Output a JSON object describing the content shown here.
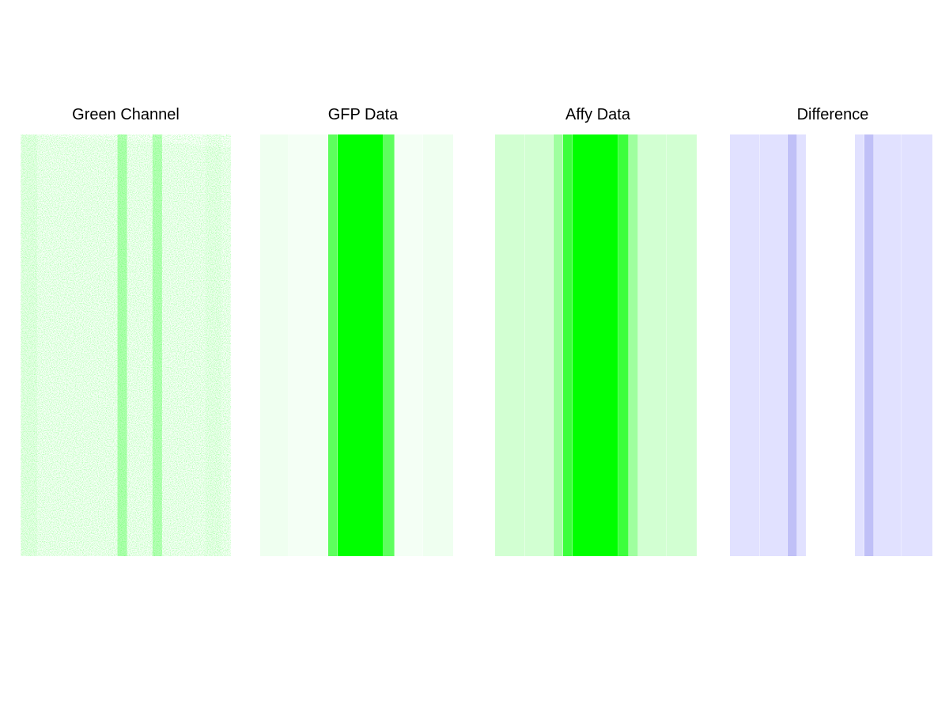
{
  "panels": {
    "green_channel": {
      "title": "Green Channel",
      "color": "#00ff00"
    },
    "gfp": {
      "title": "GFP Data"
    },
    "affy": {
      "title": "Affy Data"
    },
    "difference": {
      "title": "Difference"
    }
  },
  "chart_data": [
    {
      "type": "heatmap",
      "title": "Green Channel",
      "description_color": "#00ff00",
      "columns": [
        {
          "x": 0.5,
          "intensity": 0.08
        },
        {
          "x": 5.8,
          "intensity": 0.5
        },
        {
          "x": 7.8,
          "intensity": 0.45
        },
        {
          "x": 11.0,
          "intensity": 0.05
        }
      ]
    },
    {
      "type": "heatmap",
      "title": "GFP Data",
      "columns": [
        {
          "band": 1,
          "width": 36,
          "color": "#effff0"
        },
        {
          "band": 2,
          "width": 50,
          "color": "#f4fff5"
        },
        {
          "band": 3,
          "width": 12,
          "color": "#5dff5d"
        },
        {
          "band": 4,
          "width": 58,
          "color": "#00ff00"
        },
        {
          "band": 5,
          "width": 14,
          "color": "#5dff5d"
        },
        {
          "band": 6,
          "width": 36,
          "color": "#f4fff5"
        },
        {
          "band": 7,
          "width": 38,
          "color": "#effff0"
        }
      ]
    },
    {
      "type": "heatmap",
      "title": "Affy Data",
      "columns": [
        {
          "band": 1,
          "width": 38,
          "color": "#d2ffd2"
        },
        {
          "band": 2,
          "width": 36,
          "color": "#d2ffd2"
        },
        {
          "band": 3,
          "width": 12,
          "color": "#9fff9f"
        },
        {
          "band": 4,
          "width": 12,
          "color": "#3cff3c"
        },
        {
          "band": 5,
          "width": 58,
          "color": "#00ff00"
        },
        {
          "band": 6,
          "width": 13,
          "color": "#3cff3c"
        },
        {
          "band": 7,
          "width": 12,
          "color": "#9fff9f"
        },
        {
          "band": 8,
          "width": 36,
          "color": "#d2ffd2"
        },
        {
          "band": 9,
          "width": 38,
          "color": "#d2ffd2"
        }
      ]
    },
    {
      "type": "heatmap",
      "title": "Difference",
      "columns": [
        {
          "band": 1,
          "width": 38,
          "color": "#e1e1ff"
        },
        {
          "band": 2,
          "width": 35,
          "color": "#e1e1ff"
        },
        {
          "band": 3,
          "width": 12,
          "color": "#c0c0f7"
        },
        {
          "band": 4,
          "width": 11,
          "color": "#e1e1ff"
        },
        {
          "band": 5,
          "width": 62,
          "color": "#ffffff"
        },
        {
          "band": 6,
          "width": 12,
          "color": "#e1e1ff"
        },
        {
          "band": 7,
          "width": 12,
          "color": "#c0c0f7"
        },
        {
          "band": 8,
          "width": 35,
          "color": "#e1e1ff"
        },
        {
          "band": 9,
          "width": 39,
          "color": "#e1e1ff"
        }
      ]
    }
  ]
}
